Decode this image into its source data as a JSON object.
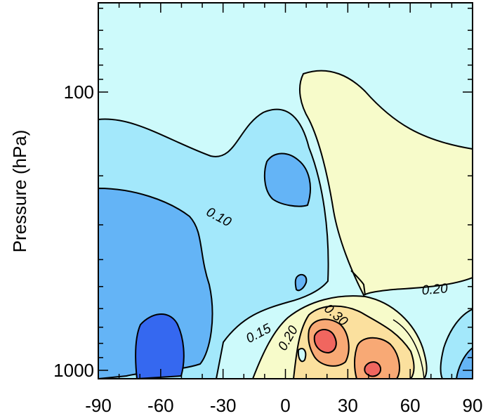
{
  "chart_data": {
    "type": "contour",
    "title": "",
    "xlabel": "",
    "ylabel": "Pressure (hPa)",
    "xlim": [
      -90,
      90
    ],
    "ylim_hPa": [
      1000,
      10
    ],
    "y_scale": "log",
    "x_ticks": [
      "-90",
      "-60",
      "-30",
      "0",
      "30",
      "60",
      "90"
    ],
    "y_tick_labels": [
      {
        "value": 100,
        "label": "100"
      },
      {
        "value": 1000,
        "label": "1000"
      }
    ],
    "contour_levels": [
      0.05,
      0.1,
      0.15,
      0.2,
      0.3,
      0.4,
      0.5
    ],
    "contour_labels": [
      {
        "text": "0.10",
        "lat": -33,
        "p": 290
      },
      {
        "text": "0.15",
        "lat": -12,
        "p": 760
      },
      {
        "text": "0.20",
        "lat": 3,
        "p": 780
      },
      {
        "text": "0.30",
        "lat": 23,
        "p": 650
      },
      {
        "text": "0.20",
        "lat": 72,
        "p": 530
      }
    ],
    "fill_colors": {
      "below_0.05": "#3568f0",
      "0.05_0.10": "#64b4f6",
      "0.10_0.15": "#a3e8fb",
      "0.15_0.20": "#cdfafb",
      "0.20_0.30": "#f7fbca",
      "0.30_0.40": "#fbe09e",
      "0.40_0.50": "#f8a975",
      "above_0.50": "#f0665f"
    }
  }
}
